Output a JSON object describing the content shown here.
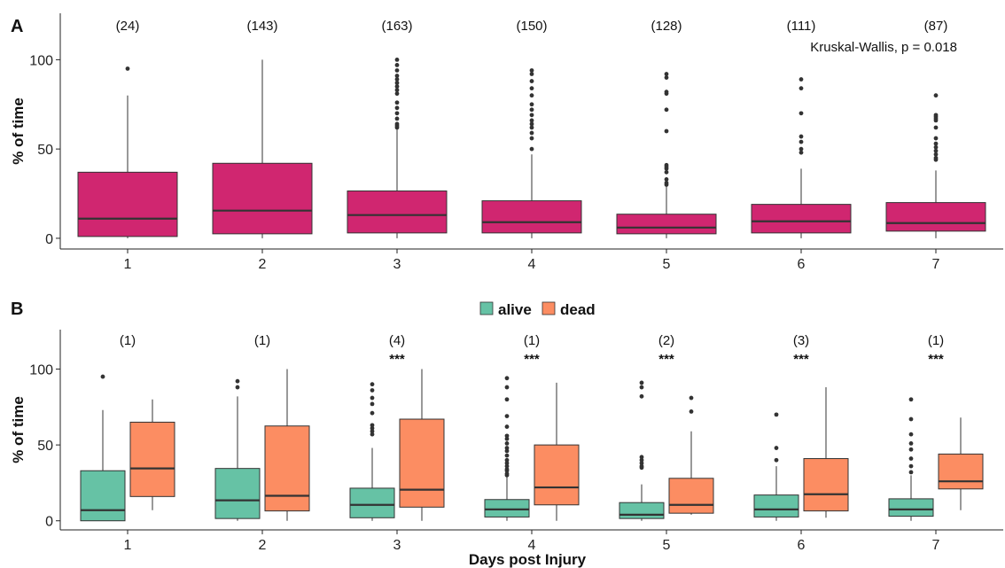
{
  "chart_data": [
    {
      "panel": "A",
      "type": "boxplot",
      "ylabel": "% of time",
      "xlabel": "",
      "ylim": [
        -6,
        126
      ],
      "yticks": [
        0,
        50,
        100
      ],
      "categories": [
        "1",
        "2",
        "3",
        "4",
        "5",
        "6",
        "7"
      ],
      "counts": [
        "(24)",
        "(143)",
        "(163)",
        "(150)",
        "(128)",
        "(111)",
        "(87)"
      ],
      "annotation": "Kruskal-Wallis, p = 0.018",
      "fill": "#d02670",
      "boxes": [
        {
          "q1": 1,
          "median": 11,
          "q3": 37,
          "whisker_low": 0,
          "whisker_high": 80,
          "outliers": [
            95
          ]
        },
        {
          "q1": 2.5,
          "median": 15.5,
          "q3": 42,
          "whisker_low": 0,
          "whisker_high": 100,
          "outliers": []
        },
        {
          "q1": 3,
          "median": 13,
          "q3": 26.5,
          "whisker_low": 0,
          "whisker_high": 61,
          "outliers": [
            62,
            63,
            64,
            67,
            70,
            73,
            76,
            81,
            83,
            85,
            87,
            89,
            91,
            94,
            97,
            100
          ]
        },
        {
          "q1": 3,
          "median": 9,
          "q3": 21,
          "whisker_low": 0,
          "whisker_high": 47,
          "outliers": [
            50,
            56,
            59,
            62,
            64,
            66,
            69,
            72,
            75,
            80,
            84,
            88,
            92,
            94
          ]
        },
        {
          "q1": 2.5,
          "median": 6,
          "q3": 13.5,
          "whisker_low": 0,
          "whisker_high": 29,
          "outliers": [
            30,
            31,
            33,
            37,
            39,
            40,
            41,
            60,
            72,
            81,
            82,
            90,
            92
          ]
        },
        {
          "q1": 3,
          "median": 9.5,
          "q3": 19,
          "whisker_low": 0,
          "whisker_high": 39,
          "outliers": [
            48,
            50,
            54,
            57,
            70,
            84,
            89
          ]
        },
        {
          "q1": 4,
          "median": 8.5,
          "q3": 20,
          "whisker_low": 0,
          "whisker_high": 38,
          "outliers": [
            44,
            45,
            47,
            49,
            51,
            53,
            56,
            62,
            66,
            67,
            68,
            69,
            80
          ]
        }
      ]
    },
    {
      "panel": "B",
      "type": "boxplot",
      "ylabel": "% of time",
      "xlabel": "Days post Injury",
      "ylim": [
        -6,
        126
      ],
      "yticks": [
        0,
        50,
        100
      ],
      "categories": [
        "1",
        "2",
        "3",
        "4",
        "5",
        "6",
        "7"
      ],
      "counts": [
        "(1)",
        "(1)",
        "(4)",
        "(1)",
        "(2)",
        "(3)",
        "(1)"
      ],
      "significance": [
        "",
        "",
        "***",
        "***",
        "***",
        "***",
        "***"
      ],
      "legend": {
        "position": "top",
        "entries": [
          {
            "name": "alive",
            "color": "#66c2a5"
          },
          {
            "name": "dead",
            "color": "#fc8d62"
          }
        ]
      },
      "series": [
        {
          "name": "alive",
          "color": "#66c2a5",
          "boxes": [
            {
              "q1": 0,
              "median": 7,
              "q3": 33,
              "whisker_low": 0,
              "whisker_high": 73,
              "outliers": [
                95
              ]
            },
            {
              "q1": 1.5,
              "median": 13.5,
              "q3": 34.5,
              "whisker_low": 0,
              "whisker_high": 82,
              "outliers": [
                88,
                92
              ]
            },
            {
              "q1": 2,
              "median": 10.5,
              "q3": 21.5,
              "whisker_low": 0,
              "whisker_high": 48,
              "outliers": [
                57,
                59,
                61,
                63,
                71,
                77,
                81,
                86,
                90
              ]
            },
            {
              "q1": 2.5,
              "median": 7.5,
              "q3": 14,
              "whisker_low": 0,
              "whisker_high": 29,
              "outliers": [
                30,
                31,
                33,
                34,
                36,
                38,
                40,
                43,
                46,
                48,
                51,
                54,
                56,
                62,
                69,
                80,
                88,
                94
              ]
            },
            {
              "q1": 1.5,
              "median": 4,
              "q3": 12,
              "whisker_low": 0,
              "whisker_high": 24,
              "outliers": [
                35,
                36,
                38,
                40,
                42,
                82,
                88,
                91
              ]
            },
            {
              "q1": 2.5,
              "median": 7.5,
              "q3": 17,
              "whisker_low": 0,
              "whisker_high": 36,
              "outliers": [
                40,
                48,
                70
              ]
            },
            {
              "q1": 3,
              "median": 7.5,
              "q3": 14.5,
              "whisker_low": 0,
              "whisker_high": 30,
              "outliers": [
                32,
                36,
                41,
                47,
                51,
                57,
                67,
                80
              ]
            }
          ]
        },
        {
          "name": "dead",
          "color": "#fc8d62",
          "boxes": [
            {
              "q1": 16,
              "median": 34.5,
              "q3": 65,
              "whisker_low": 7,
              "whisker_high": 80,
              "outliers": []
            },
            {
              "q1": 6.5,
              "median": 16.5,
              "q3": 62.5,
              "whisker_low": 0,
              "whisker_high": 100,
              "outliers": []
            },
            {
              "q1": 9,
              "median": 20.5,
              "q3": 67,
              "whisker_low": 0,
              "whisker_high": 100,
              "outliers": []
            },
            {
              "q1": 10.5,
              "median": 22,
              "q3": 50,
              "whisker_low": 0,
              "whisker_high": 91,
              "outliers": []
            },
            {
              "q1": 5,
              "median": 10.5,
              "q3": 28,
              "whisker_low": 4,
              "whisker_high": 59,
              "outliers": [
                72,
                81
              ]
            },
            {
              "q1": 6.5,
              "median": 17.5,
              "q3": 41,
              "whisker_low": 2,
              "whisker_high": 88,
              "outliers": []
            },
            {
              "q1": 21,
              "median": 26,
              "q3": 44,
              "whisker_low": 7,
              "whisker_high": 68,
              "outliers": []
            }
          ]
        }
      ]
    }
  ]
}
